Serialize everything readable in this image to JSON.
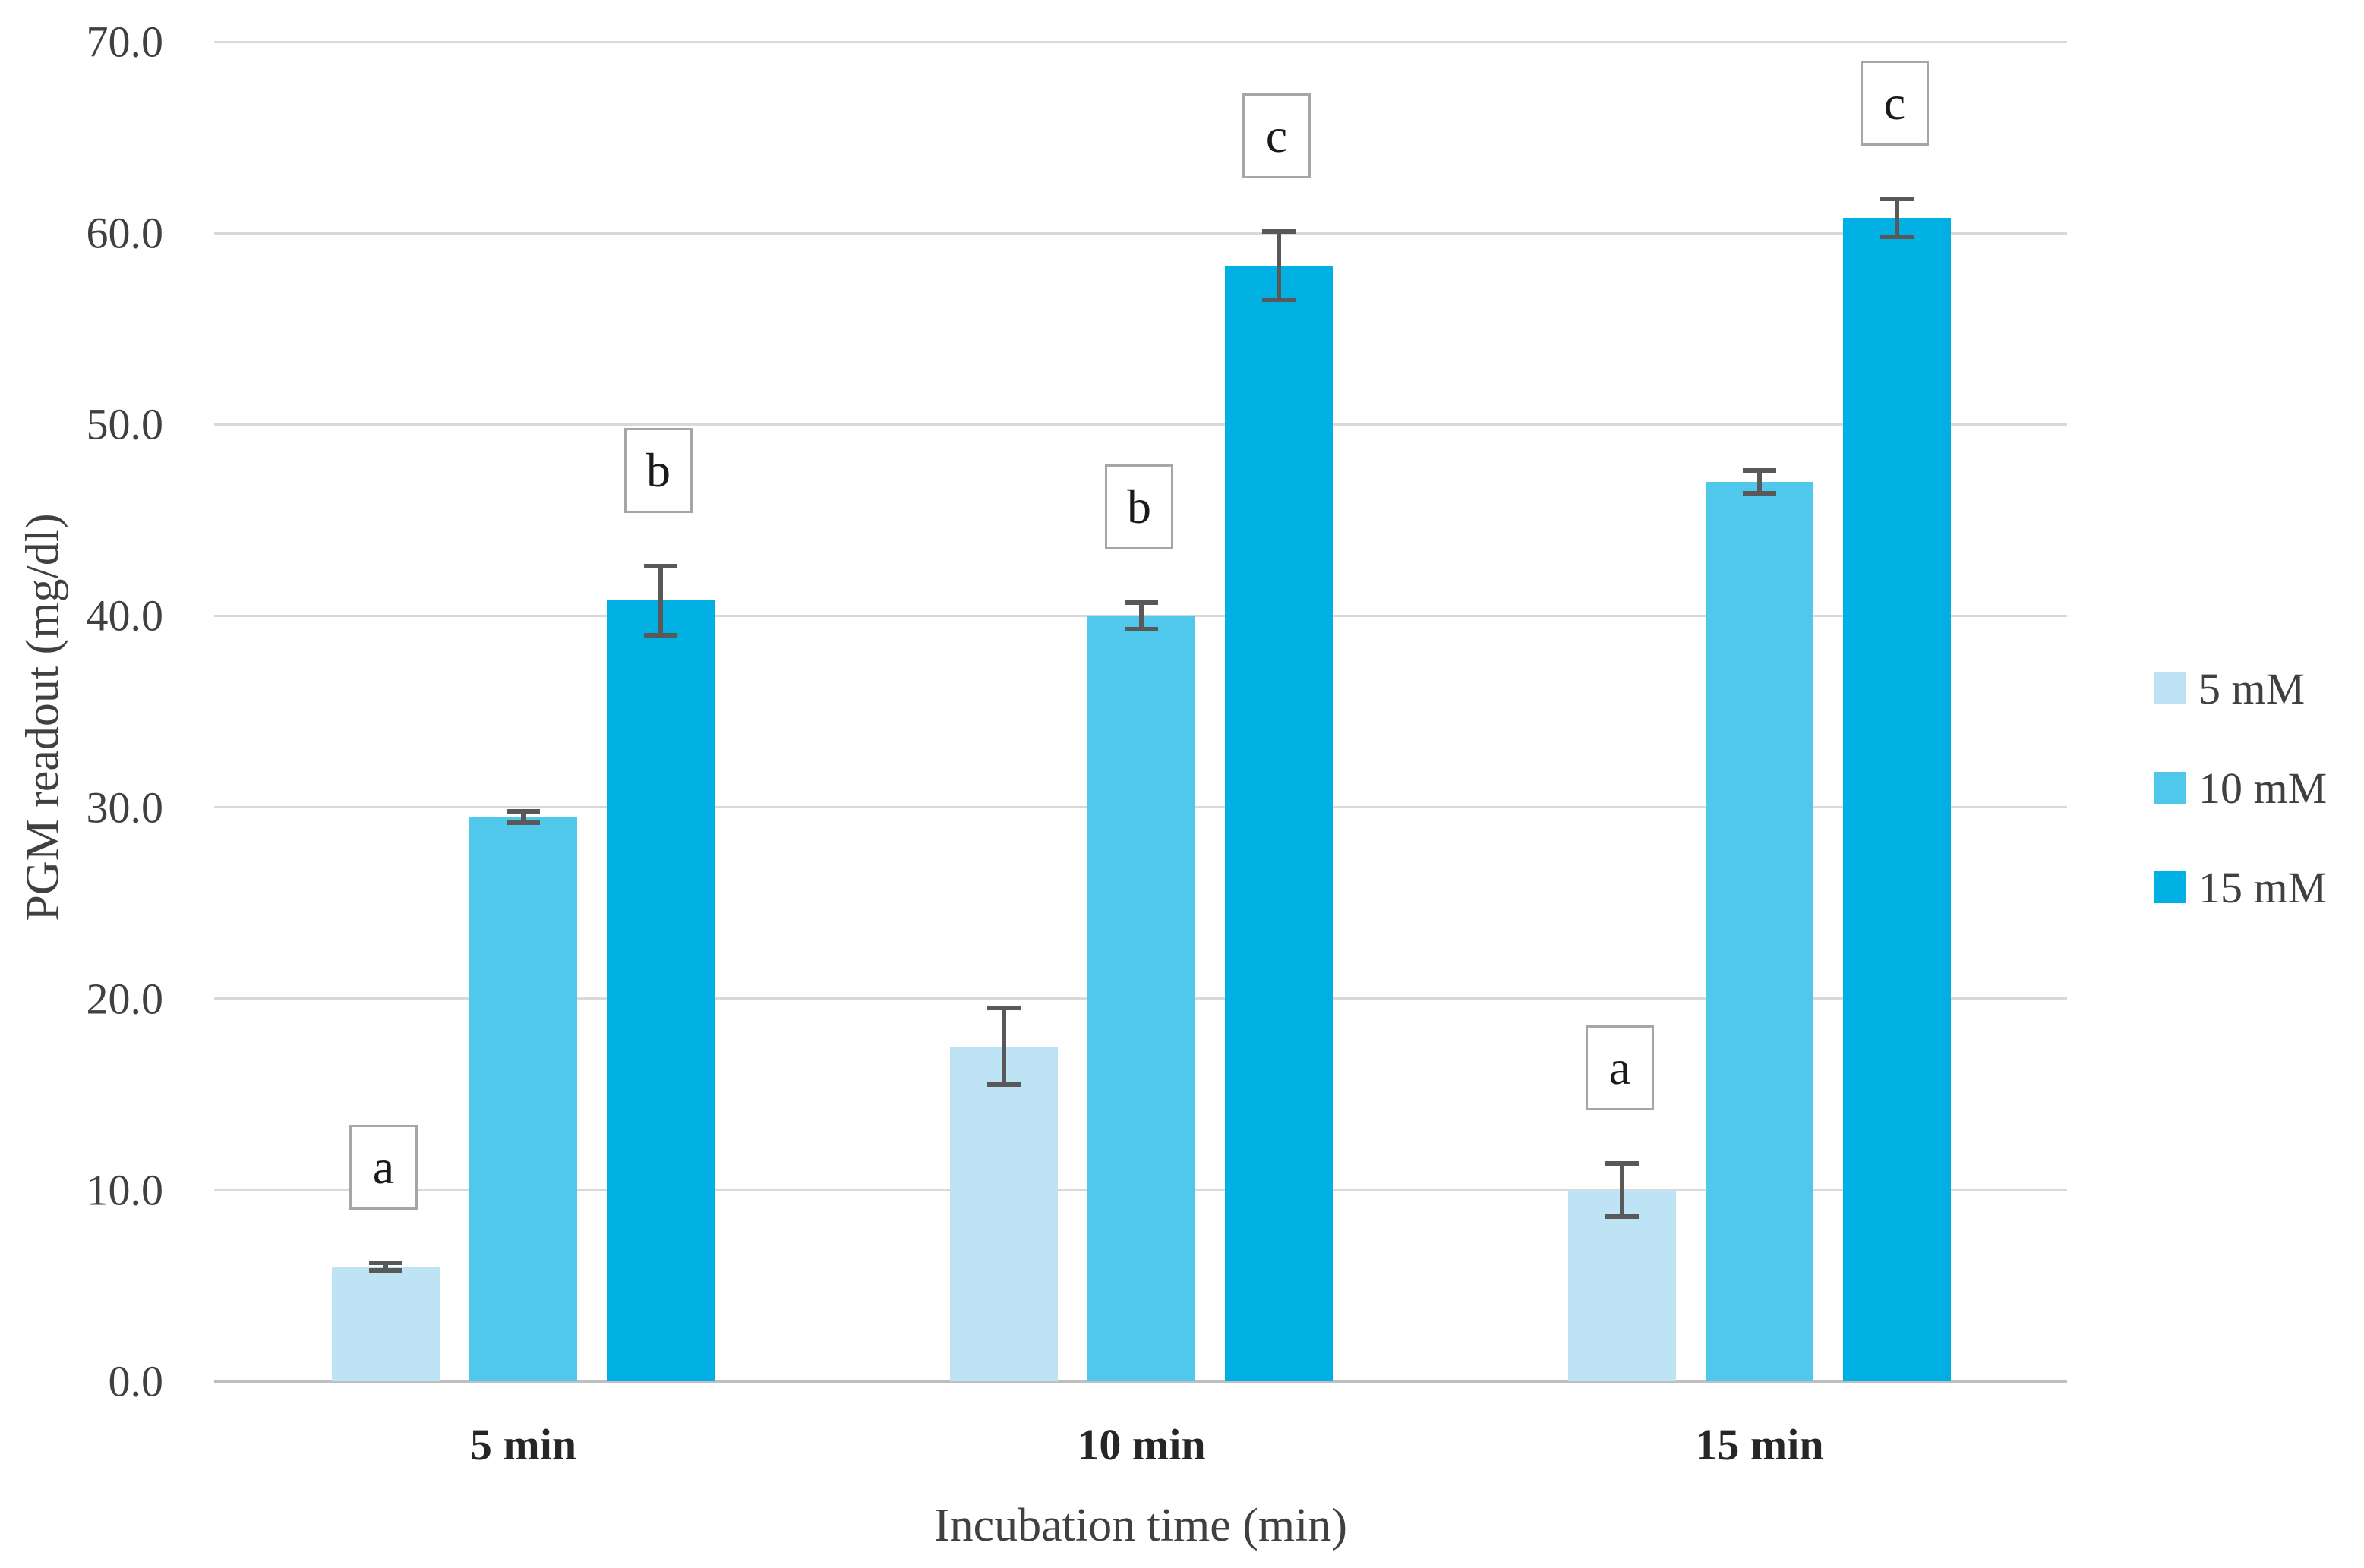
{
  "chart_data": {
    "type": "bar",
    "title": "",
    "xlabel": "Incubation time (min)",
    "ylabel": "PGM readout (mg/dl)",
    "categories": [
      "5 min",
      "10 min",
      "15 min"
    ],
    "series": [
      {
        "name": "5 mM",
        "color": "#bde3f5",
        "values": [
          6.0,
          17.5,
          10.0
        ],
        "errors": [
          0.2,
          2.0,
          1.4
        ]
      },
      {
        "name": "10 mM",
        "color": "#4fc8eb",
        "values": [
          29.5,
          40.0,
          47.0
        ],
        "errors": [
          0.3,
          0.7,
          0.6
        ]
      },
      {
        "name": "15 mM",
        "color": "#00b0e3",
        "values": [
          40.8,
          58.3,
          60.8
        ],
        "errors": [
          1.8,
          1.8,
          1.0
        ]
      }
    ],
    "ylim": [
      0,
      70
    ],
    "ytick_step": 10,
    "ytick_labels": [
      "0.0",
      "10.0",
      "20.0",
      "30.0",
      "40.0",
      "50.0",
      "60.0",
      "70.0"
    ],
    "grid": true,
    "legend_position": "right",
    "error_bar_color": "#595959",
    "gridline_color": "#d9d9d9",
    "annotations": [
      {
        "label": "a",
        "category": 0,
        "series": 0
      },
      {
        "label": "b",
        "category": 0,
        "series": 2
      },
      {
        "label": "b",
        "category": 1,
        "series": 1
      },
      {
        "label": "c",
        "category": 1,
        "series": 2
      },
      {
        "label": "a",
        "category": 2,
        "series": 0
      },
      {
        "label": "c",
        "category": 2,
        "series": 2
      }
    ]
  }
}
